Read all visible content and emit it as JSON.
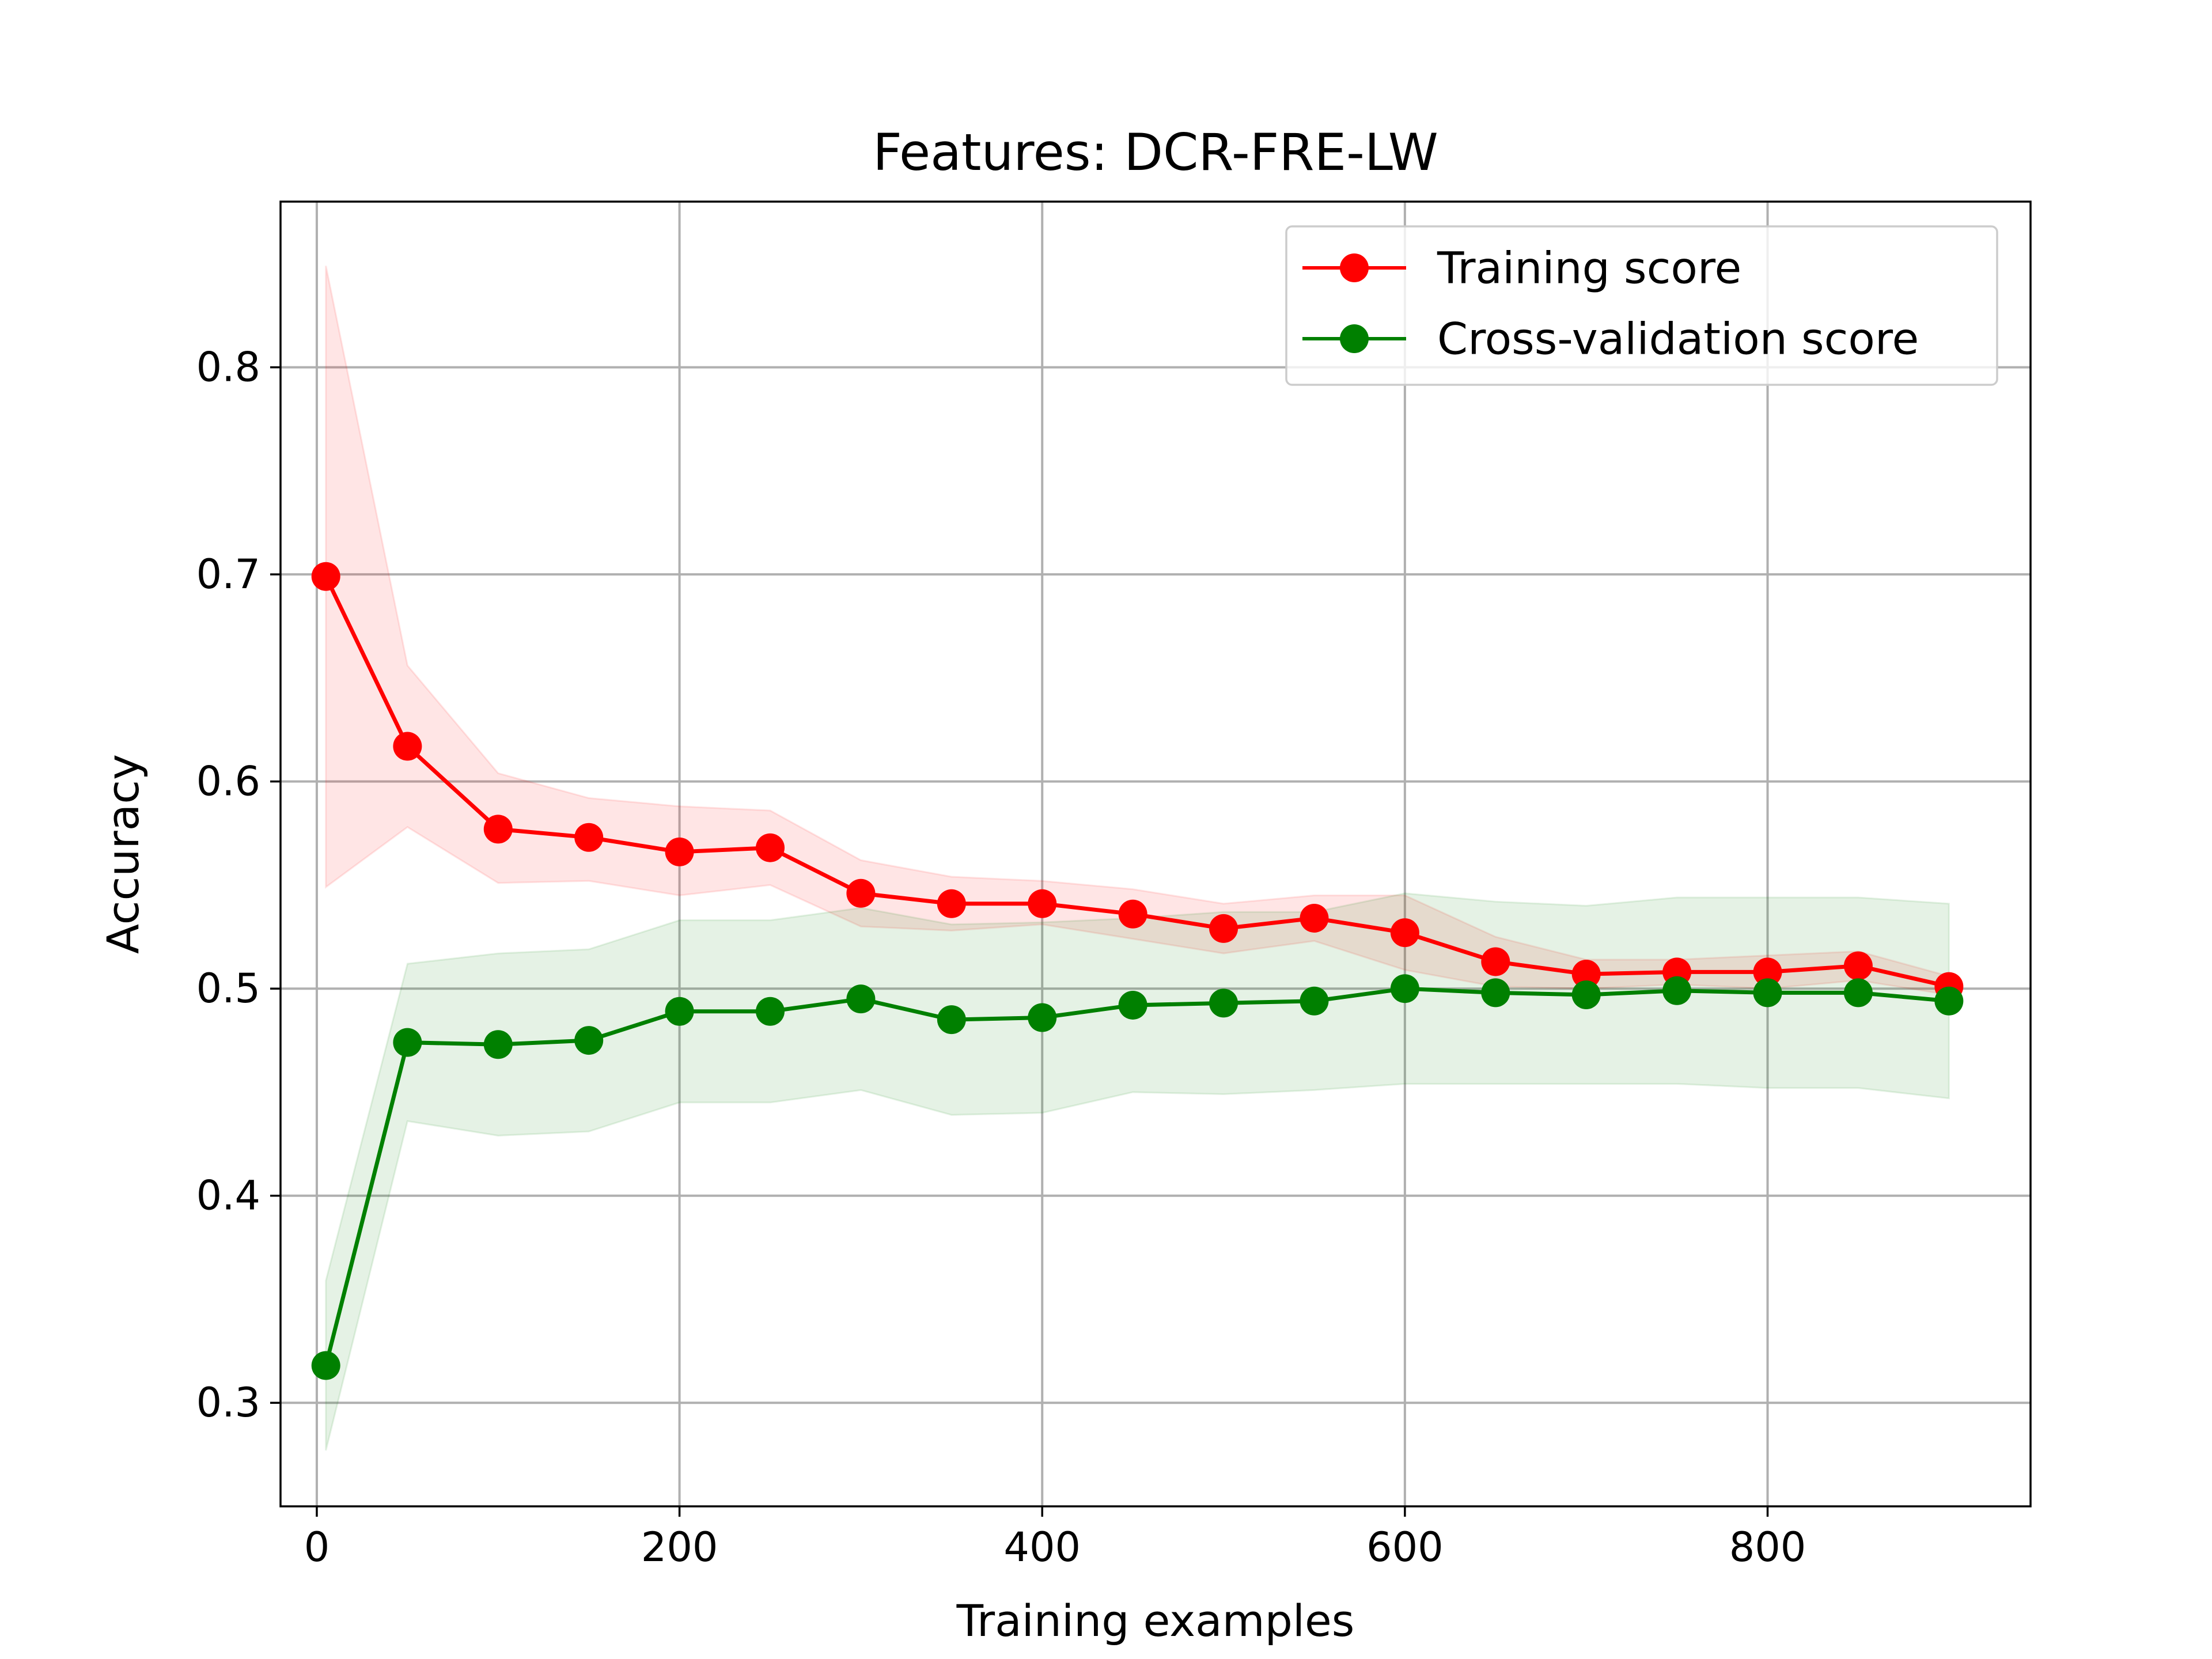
{
  "chart_data": {
    "type": "line",
    "title": "Features: DCR-FRE-LW",
    "xlabel": "Training examples",
    "ylabel": "Accuracy",
    "xlim": [
      -20,
      945
    ],
    "ylim": [
      0.25,
      0.88
    ],
    "xticks": [
      0,
      200,
      400,
      600,
      800
    ],
    "yticks": [
      0.3,
      0.4,
      0.5,
      0.6,
      0.7,
      0.8
    ],
    "grid": true,
    "legend": "top-right",
    "x": [
      5,
      50,
      100,
      150,
      200,
      250,
      300,
      350,
      400,
      450,
      500,
      550,
      600,
      650,
      700,
      750,
      800,
      850,
      900
    ],
    "series": [
      {
        "name": "Training score",
        "color": "#ff0000",
        "values": [
          0.699,
          0.617,
          0.577,
          0.573,
          0.566,
          0.568,
          0.546,
          0.541,
          0.541,
          0.536,
          0.529,
          0.534,
          0.527,
          0.513,
          0.507,
          0.508,
          0.508,
          0.511,
          0.501
        ],
        "band_low": [
          0.549,
          0.578,
          0.551,
          0.552,
          0.545,
          0.55,
          0.53,
          0.528,
          0.531,
          0.524,
          0.517,
          0.523,
          0.509,
          0.501,
          0.5,
          0.502,
          0.5,
          0.504,
          0.497
        ],
        "band_high": [
          0.849,
          0.656,
          0.604,
          0.592,
          0.588,
          0.586,
          0.562,
          0.554,
          0.552,
          0.548,
          0.541,
          0.545,
          0.545,
          0.525,
          0.514,
          0.514,
          0.516,
          0.518,
          0.506
        ]
      },
      {
        "name": "Cross-validation score",
        "color": "#008000",
        "values": [
          0.318,
          0.474,
          0.473,
          0.475,
          0.489,
          0.489,
          0.495,
          0.485,
          0.486,
          0.492,
          0.493,
          0.494,
          0.5,
          0.498,
          0.497,
          0.499,
          0.498,
          0.498,
          0.494
        ],
        "band_low": [
          0.277,
          0.436,
          0.429,
          0.431,
          0.445,
          0.445,
          0.451,
          0.439,
          0.44,
          0.45,
          0.449,
          0.451,
          0.454,
          0.454,
          0.454,
          0.454,
          0.452,
          0.452,
          0.447
        ],
        "band_high": [
          0.359,
          0.512,
          0.517,
          0.519,
          0.533,
          0.533,
          0.539,
          0.531,
          0.532,
          0.534,
          0.537,
          0.537,
          0.546,
          0.542,
          0.54,
          0.544,
          0.544,
          0.544,
          0.541
        ]
      }
    ]
  }
}
